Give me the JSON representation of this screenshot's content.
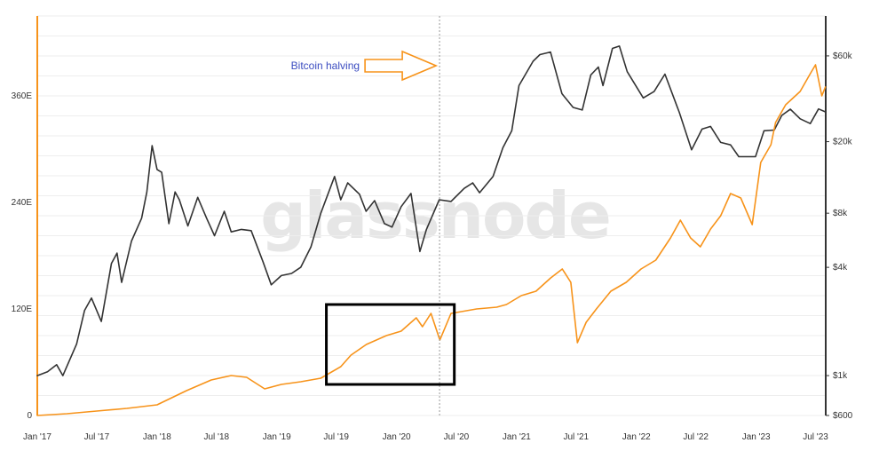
{
  "chart_data": {
    "type": "line",
    "title": "",
    "watermark": "glassnode",
    "colors": {
      "price": "#333333",
      "metric": "#f7931a",
      "left_axis": "#f7931a",
      "right_axis": "#333333",
      "grid": "#eeeeee",
      "annotation_text": "#3b4cc0",
      "annotation_arrow": "#f7931a",
      "halving_line": "#999999",
      "highlight_box": "#000000"
    },
    "x_axis": {
      "type": "date",
      "range": [
        "2017-01-01",
        "2023-08-01"
      ],
      "ticks": [
        {
          "date": "2017-01-01",
          "label": "Jan '17"
        },
        {
          "date": "2017-07-01",
          "label": "Jul '17"
        },
        {
          "date": "2018-01-01",
          "label": "Jan '18"
        },
        {
          "date": "2018-07-01",
          "label": "Jul '18"
        },
        {
          "date": "2019-01-01",
          "label": "Jan '19"
        },
        {
          "date": "2019-07-01",
          "label": "Jul '19"
        },
        {
          "date": "2020-01-01",
          "label": "Jan '20"
        },
        {
          "date": "2020-07-01",
          "label": "Jul '20"
        },
        {
          "date": "2021-01-01",
          "label": "Jan '21"
        },
        {
          "date": "2021-07-01",
          "label": "Jul '21"
        },
        {
          "date": "2022-01-01",
          "label": "Jan '22"
        },
        {
          "date": "2022-07-01",
          "label": "Jul '22"
        },
        {
          "date": "2023-01-01",
          "label": "Jan '23"
        },
        {
          "date": "2023-07-01",
          "label": "Jul '23"
        }
      ]
    },
    "y_left": {
      "scale": "linear",
      "range": [
        0,
        450
      ],
      "ticks": [
        {
          "value": 0,
          "label": "0"
        },
        {
          "value": 120,
          "label": "120E"
        },
        {
          "value": 240,
          "label": "240E"
        },
        {
          "value": 360,
          "label": "360E"
        }
      ]
    },
    "y_right": {
      "scale": "log",
      "range": [
        600,
        100000
      ],
      "ticks": [
        {
          "value": 600,
          "label": "$600"
        },
        {
          "value": 1000,
          "label": "$1k"
        },
        {
          "value": 4000,
          "label": "$4k"
        },
        {
          "value": 8000,
          "label": "$8k"
        },
        {
          "value": 20000,
          "label": "$20k"
        },
        {
          "value": 60000,
          "label": "$60k"
        }
      ]
    },
    "series": [
      {
        "axis": "right",
        "color": "#333333",
        "points": [
          [
            "2017-01-01",
            1000
          ],
          [
            "2017-02-01",
            1050
          ],
          [
            "2017-03-01",
            1150
          ],
          [
            "2017-03-20",
            1000
          ],
          [
            "2017-05-01",
            1500
          ],
          [
            "2017-05-25",
            2300
          ],
          [
            "2017-06-15",
            2700
          ],
          [
            "2017-07-15",
            2000
          ],
          [
            "2017-08-15",
            4200
          ],
          [
            "2017-09-01",
            4800
          ],
          [
            "2017-09-15",
            3300
          ],
          [
            "2017-10-15",
            5600
          ],
          [
            "2017-11-15",
            7500
          ],
          [
            "2017-12-01",
            10500
          ],
          [
            "2017-12-17",
            19000
          ],
          [
            "2018-01-01",
            14000
          ],
          [
            "2018-01-15",
            13500
          ],
          [
            "2018-02-06",
            7000
          ],
          [
            "2018-02-25",
            10500
          ],
          [
            "2018-03-10",
            9500
          ],
          [
            "2018-04-05",
            6800
          ],
          [
            "2018-05-05",
            9800
          ],
          [
            "2018-06-01",
            7500
          ],
          [
            "2018-06-25",
            6000
          ],
          [
            "2018-07-25",
            8200
          ],
          [
            "2018-08-15",
            6300
          ],
          [
            "2018-09-15",
            6500
          ],
          [
            "2018-10-15",
            6400
          ],
          [
            "2018-11-20",
            4300
          ],
          [
            "2018-12-15",
            3200
          ],
          [
            "2019-01-15",
            3600
          ],
          [
            "2019-02-15",
            3700
          ],
          [
            "2019-03-15",
            4000
          ],
          [
            "2019-04-15",
            5200
          ],
          [
            "2019-05-15",
            8000
          ],
          [
            "2019-06-26",
            12800
          ],
          [
            "2019-07-15",
            9500
          ],
          [
            "2019-08-05",
            11800
          ],
          [
            "2019-09-10",
            10200
          ],
          [
            "2019-09-30",
            8200
          ],
          [
            "2019-10-26",
            9400
          ],
          [
            "2019-11-25",
            7000
          ],
          [
            "2019-12-18",
            6700
          ],
          [
            "2020-01-15",
            8700
          ],
          [
            "2020-02-14",
            10300
          ],
          [
            "2020-03-12",
            4900
          ],
          [
            "2020-04-01",
            6500
          ],
          [
            "2020-05-10",
            9500
          ],
          [
            "2020-06-15",
            9300
          ],
          [
            "2020-07-25",
            11000
          ],
          [
            "2020-08-20",
            11800
          ],
          [
            "2020-09-10",
            10400
          ],
          [
            "2020-10-21",
            12800
          ],
          [
            "2020-11-20",
            18500
          ],
          [
            "2020-12-17",
            23000
          ],
          [
            "2021-01-08",
            41000
          ],
          [
            "2021-02-20",
            56000
          ],
          [
            "2021-03-13",
            61000
          ],
          [
            "2021-04-14",
            63000
          ],
          [
            "2021-05-19",
            37000
          ],
          [
            "2021-06-22",
            31000
          ],
          [
            "2021-07-20",
            30000
          ],
          [
            "2021-08-15",
            47000
          ],
          [
            "2021-09-07",
            52000
          ],
          [
            "2021-09-21",
            41000
          ],
          [
            "2021-10-20",
            66000
          ],
          [
            "2021-11-10",
            68000
          ],
          [
            "2021-12-04",
            49000
          ],
          [
            "2022-01-22",
            35000
          ],
          [
            "2022-02-24",
            38000
          ],
          [
            "2022-03-29",
            47500
          ],
          [
            "2022-05-12",
            29000
          ],
          [
            "2022-06-18",
            18000
          ],
          [
            "2022-07-20",
            23500
          ],
          [
            "2022-08-15",
            24300
          ],
          [
            "2022-09-15",
            19800
          ],
          [
            "2022-10-15",
            19200
          ],
          [
            "2022-11-09",
            16500
          ],
          [
            "2022-12-30",
            16500
          ],
          [
            "2023-01-25",
            23000
          ],
          [
            "2023-02-25",
            23200
          ],
          [
            "2023-03-20",
            28000
          ],
          [
            "2023-04-15",
            30300
          ],
          [
            "2023-05-15",
            26800
          ],
          [
            "2023-06-15",
            25200
          ],
          [
            "2023-07-10",
            30400
          ],
          [
            "2023-07-31",
            29300
          ]
        ]
      },
      {
        "axis": "left",
        "color": "#f7931a",
        "points": [
          [
            "2017-01-01",
            0
          ],
          [
            "2017-04-01",
            2
          ],
          [
            "2017-07-01",
            5
          ],
          [
            "2017-10-01",
            8
          ],
          [
            "2018-01-01",
            12
          ],
          [
            "2018-04-01",
            28
          ],
          [
            "2018-06-15",
            40
          ],
          [
            "2018-08-15",
            45
          ],
          [
            "2018-10-01",
            43
          ],
          [
            "2018-11-25",
            30
          ],
          [
            "2019-01-15",
            35
          ],
          [
            "2019-03-15",
            38
          ],
          [
            "2019-05-15",
            42
          ],
          [
            "2019-07-15",
            55
          ],
          [
            "2019-08-15",
            68
          ],
          [
            "2019-10-01",
            80
          ],
          [
            "2019-12-01",
            90
          ],
          [
            "2020-01-15",
            95
          ],
          [
            "2020-03-01",
            110
          ],
          [
            "2020-03-20",
            100
          ],
          [
            "2020-04-15",
            115
          ],
          [
            "2020-05-12",
            85
          ],
          [
            "2020-06-15",
            115
          ],
          [
            "2020-09-01",
            120
          ],
          [
            "2020-11-01",
            122
          ],
          [
            "2020-12-01",
            125
          ],
          [
            "2021-01-15",
            135
          ],
          [
            "2021-03-01",
            140
          ],
          [
            "2021-04-15",
            155
          ],
          [
            "2021-05-20",
            165
          ],
          [
            "2021-06-15",
            150
          ],
          [
            "2021-07-05",
            82
          ],
          [
            "2021-08-01",
            105
          ],
          [
            "2021-09-01",
            120
          ],
          [
            "2021-10-15",
            140
          ],
          [
            "2021-12-01",
            150
          ],
          [
            "2022-01-15",
            165
          ],
          [
            "2022-03-01",
            175
          ],
          [
            "2022-04-15",
            200
          ],
          [
            "2022-05-15",
            220
          ],
          [
            "2022-06-15",
            200
          ],
          [
            "2022-07-15",
            190
          ],
          [
            "2022-08-15",
            210
          ],
          [
            "2022-09-15",
            225
          ],
          [
            "2022-10-15",
            250
          ],
          [
            "2022-11-15",
            245
          ],
          [
            "2022-12-20",
            215
          ],
          [
            "2023-01-15",
            285
          ],
          [
            "2023-02-15",
            305
          ],
          [
            "2023-03-01",
            330
          ],
          [
            "2023-04-01",
            350
          ],
          [
            "2023-05-15",
            365
          ],
          [
            "2023-06-15",
            385
          ],
          [
            "2023-07-01",
            395
          ],
          [
            "2023-07-20",
            360
          ],
          [
            "2023-07-31",
            370
          ]
        ]
      }
    ],
    "annotations": [
      {
        "type": "vline",
        "date": "2020-05-11",
        "style": "dotted",
        "label": "Bitcoin halving"
      },
      {
        "type": "box",
        "x_range": [
          "2019-06-01",
          "2020-06-25"
        ],
        "y_left_range": [
          35,
          125
        ]
      }
    ]
  }
}
